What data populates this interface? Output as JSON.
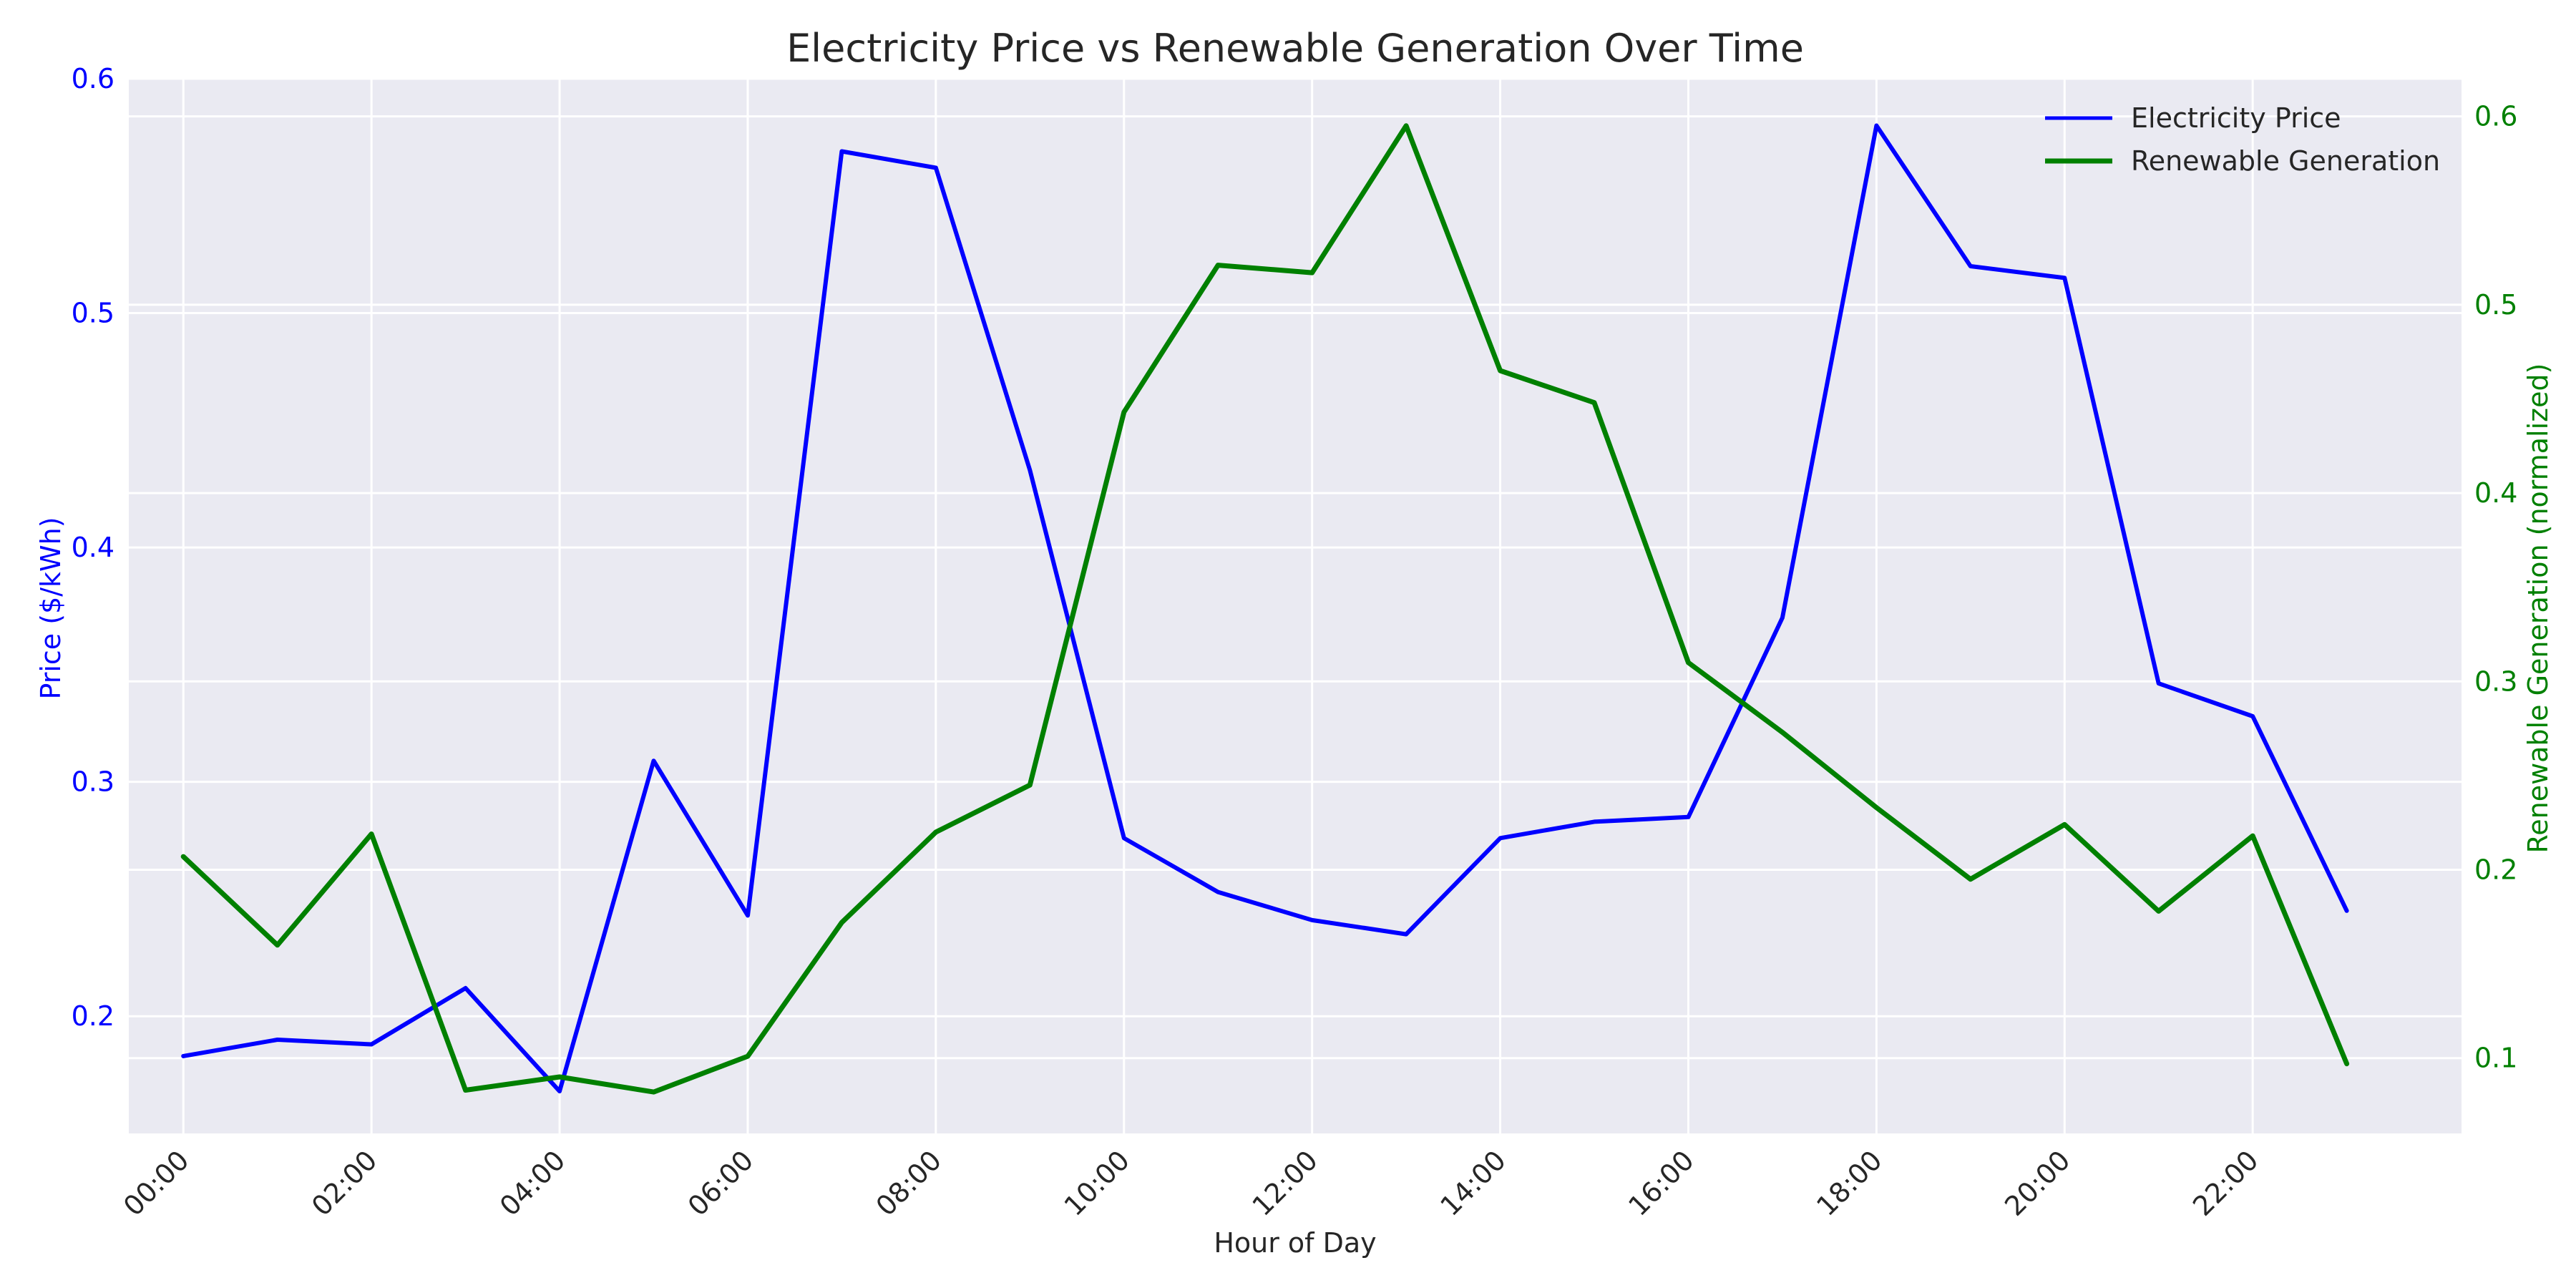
{
  "chart_data": {
    "type": "line",
    "title": "Electricity Price vs Renewable Generation Over Time",
    "xlabel": "Hour of Day",
    "ylabel_left": "Price ($/kWh)",
    "ylabel_right": "Renewable Generation (normalized)",
    "x": [
      0,
      1,
      2,
      3,
      4,
      5,
      6,
      7,
      8,
      9,
      10,
      11,
      12,
      13,
      14,
      15,
      16,
      17,
      18,
      19,
      20,
      21,
      22,
      23
    ],
    "x_ticks": [
      0,
      2,
      4,
      6,
      8,
      10,
      12,
      14,
      16,
      18,
      20,
      22
    ],
    "x_tick_labels": [
      "00:00",
      "02:00",
      "04:00",
      "06:00",
      "08:00",
      "10:00",
      "12:00",
      "14:00",
      "16:00",
      "18:00",
      "20:00",
      "22:00"
    ],
    "ylim_left": [
      0.15,
      0.6
    ],
    "yticks_left": [
      0.2,
      0.3,
      0.4,
      0.5,
      0.6
    ],
    "ytick_labels_left": [
      "0.2",
      "0.3",
      "0.4",
      "0.5",
      "0.6"
    ],
    "ylim_right": [
      0.06,
      0.62
    ],
    "yticks_right": [
      0.1,
      0.2,
      0.3,
      0.4,
      0.5,
      0.6
    ],
    "ytick_labels_right": [
      "0.1",
      "0.2",
      "0.3",
      "0.4",
      "0.5",
      "0.6"
    ],
    "grid": true,
    "legend_position": "top-right",
    "series": [
      {
        "name": "Electricity Price",
        "axis": "left",
        "color": "#0000ff",
        "values": [
          0.183,
          0.19,
          0.188,
          0.212,
          0.168,
          0.309,
          0.243,
          0.569,
          0.562,
          0.433,
          0.276,
          0.253,
          0.241,
          0.235,
          0.276,
          0.283,
          0.285,
          0.37,
          0.58,
          0.52,
          0.515,
          0.342,
          0.328,
          0.245
        ]
      },
      {
        "name": "Renewable Generation",
        "axis": "right",
        "color": "#008000",
        "values": [
          0.207,
          0.16,
          0.219,
          0.083,
          0.09,
          0.082,
          0.101,
          0.172,
          0.22,
          0.245,
          0.443,
          0.521,
          0.517,
          0.595,
          0.465,
          0.448,
          0.31,
          0.273,
          0.233,
          0.195,
          0.224,
          0.178,
          0.218,
          0.097
        ]
      }
    ]
  },
  "colors": {
    "plot_background": "#eaeaf2",
    "grid": "#ffffff",
    "left_axis": "#0000ff",
    "right_axis": "#008000",
    "text": "#262626"
  }
}
